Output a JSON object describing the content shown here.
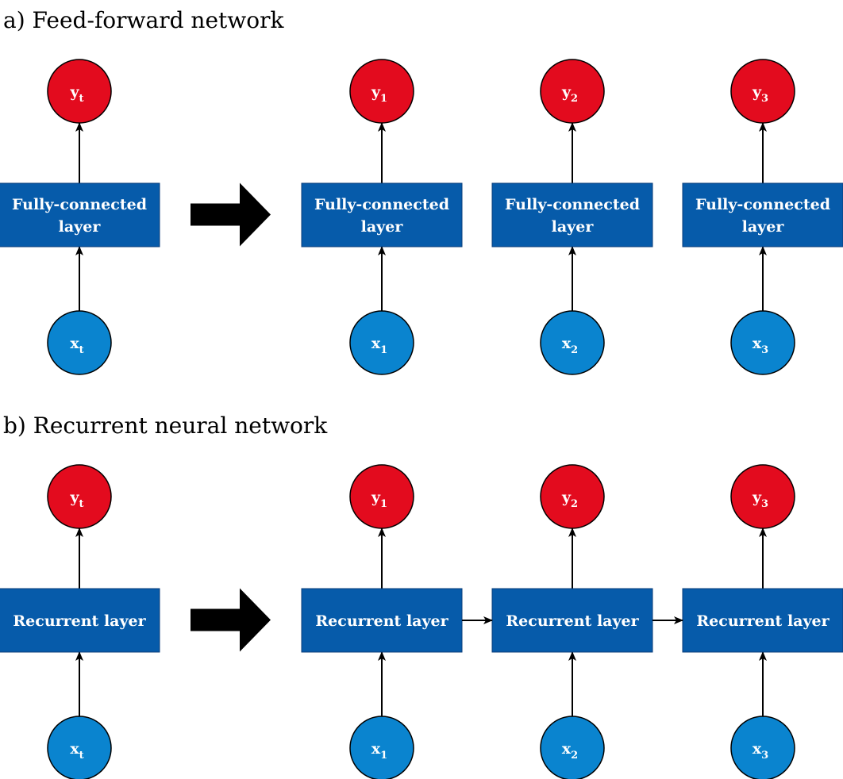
{
  "colors": {
    "output_node": "#e30b1e",
    "input_node": "#0a84cf",
    "layer_box": "#065baa",
    "layer_box_border": "#0a3d7a",
    "transform_arrow": "#000000"
  },
  "sections": [
    {
      "title": "a) Feed-forward network",
      "left": {
        "output": {
          "base": "y",
          "sub": "t"
        },
        "layer": [
          "Fully-connected",
          "layer"
        ],
        "input": {
          "base": "x",
          "sub": "t"
        }
      },
      "transform_arrow_icon": "thick-right-arrow-icon",
      "unrolled": [
        {
          "output": {
            "base": "y",
            "sub": "1"
          },
          "layer": [
            "Fully-connected",
            "layer"
          ],
          "input": {
            "base": "x",
            "sub": "1"
          }
        },
        {
          "output": {
            "base": "y",
            "sub": "2"
          },
          "layer": [
            "Fully-connected",
            "layer"
          ],
          "input": {
            "base": "x",
            "sub": "2"
          }
        },
        {
          "output": {
            "base": "y",
            "sub": "3"
          },
          "layer": [
            "Fully-connected",
            "layer"
          ],
          "input": {
            "base": "x",
            "sub": "3"
          }
        }
      ],
      "recurrent_links": false
    },
    {
      "title": "b) Recurrent neural network",
      "left": {
        "output": {
          "base": "y",
          "sub": "t"
        },
        "layer": [
          "Recurrent layer"
        ],
        "input": {
          "base": "x",
          "sub": "t"
        }
      },
      "transform_arrow_icon": "thick-right-arrow-icon",
      "unrolled": [
        {
          "output": {
            "base": "y",
            "sub": "1"
          },
          "layer": [
            "Recurrent layer"
          ],
          "input": {
            "base": "x",
            "sub": "1"
          }
        },
        {
          "output": {
            "base": "y",
            "sub": "2"
          },
          "layer": [
            "Recurrent layer"
          ],
          "input": {
            "base": "x",
            "sub": "2"
          }
        },
        {
          "output": {
            "base": "y",
            "sub": "3"
          },
          "layer": [
            "Recurrent layer"
          ],
          "input": {
            "base": "x",
            "sub": "3"
          }
        }
      ],
      "recurrent_links": true
    }
  ]
}
